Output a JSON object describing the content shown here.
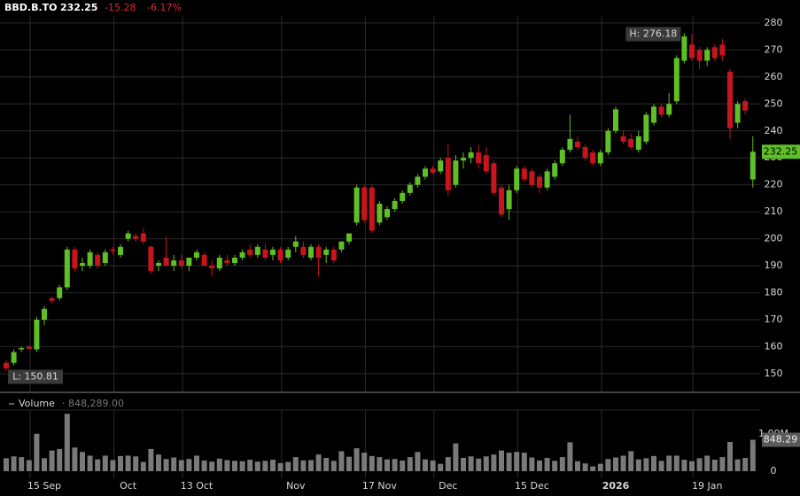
{
  "chart_data": {
    "type": "candlestick",
    "title": "BBD.B.TO",
    "change": -15.28,
    "change_percent": "-6.17%",
    "up_color": "#5fbf26",
    "down_color": "#c8141c",
    "volume_color": "#7a7a7a",
    "grid": true,
    "categories": [
      null,
      null,
      null,
      null,
      null,
      "15 Sep",
      null,
      null,
      null,
      null,
      null,
      null,
      null,
      null,
      null,
      null,
      "Oct",
      null,
      null,
      null,
      null,
      null,
      null,
      null,
      null,
      "13 Oct",
      null,
      null,
      null,
      null,
      null,
      null,
      null,
      null,
      null,
      null,
      null,
      null,
      "Nov",
      null,
      null,
      null,
      null,
      null,
      null,
      null,
      null,
      null,
      null,
      "17 Nov",
      null,
      null,
      null,
      null,
      null,
      null,
      null,
      null,
      "Dec",
      null,
      null,
      null,
      null,
      null,
      null,
      null,
      null,
      null,
      null,
      "15 Dec",
      null,
      null,
      null,
      null,
      null,
      null,
      null,
      null,
      null,
      null,
      "2026",
      null,
      null,
      null,
      null,
      null,
      null,
      null,
      null,
      null,
      null,
      null,
      "19 Jan",
      null,
      null,
      null,
      null,
      null,
      null
    ],
    "open": [
      154,
      154,
      159,
      160,
      159,
      170,
      178,
      178,
      182,
      196,
      190,
      190,
      194,
      191,
      196,
      194,
      200,
      201,
      202,
      197,
      190,
      193,
      190,
      192,
      190,
      193,
      194,
      190,
      189,
      192,
      191,
      193,
      196,
      194,
      196,
      194,
      196,
      193,
      197,
      197,
      193,
      197,
      194,
      196,
      196,
      199,
      206,
      219,
      219,
      206,
      208,
      211,
      214,
      217,
      220,
      223,
      226,
      225,
      230,
      220,
      229,
      230,
      232,
      231,
      228,
      219,
      211,
      218,
      226,
      225,
      223,
      219,
      223,
      228,
      233,
      236,
      234,
      232,
      228,
      232,
      240,
      238,
      237,
      233,
      236,
      243,
      249,
      246,
      251,
      266,
      272,
      270,
      266,
      271,
      272,
      262,
      243,
      251,
      222
    ],
    "high": [
      155,
      159,
      160,
      160.5,
      171,
      175,
      178.5,
      183,
      197,
      197,
      193,
      196,
      195,
      196,
      197,
      198,
      203,
      202,
      204,
      197.5,
      192,
      201,
      194,
      194,
      193,
      196,
      195,
      192,
      194,
      194,
      194,
      196,
      198,
      198,
      198,
      197,
      197,
      197,
      201,
      199,
      198,
      198,
      197,
      197,
      199,
      202,
      220,
      220,
      220,
      214,
      212,
      215,
      218,
      221,
      224,
      227,
      227,
      230,
      235,
      231,
      232,
      234,
      235,
      234,
      229,
      220,
      220,
      227,
      227,
      226,
      224,
      226,
      229,
      234,
      246,
      238,
      235,
      233,
      233,
      241,
      249,
      240,
      239,
      240,
      247,
      250,
      250,
      254,
      268,
      276.18,
      276,
      271,
      271,
      272,
      274,
      263,
      251,
      252,
      238
    ],
    "low": [
      150.81,
      153,
      158,
      159,
      158,
      168,
      176,
      177,
      181,
      188,
      188,
      189,
      189,
      190,
      194,
      193,
      199,
      199,
      198,
      187,
      188,
      190,
      188,
      189,
      188,
      192,
      190,
      186,
      188,
      190,
      190,
      192,
      193,
      193,
      192,
      192,
      191,
      192,
      195,
      193,
      192,
      186,
      191,
      191,
      195,
      198,
      205,
      206,
      202,
      205,
      207,
      210,
      213,
      216,
      219,
      222,
      224,
      224,
      216,
      219,
      226,
      228,
      226,
      224,
      216,
      208,
      207,
      217,
      221,
      219,
      217,
      218,
      222,
      227,
      232,
      233,
      229,
      227,
      227,
      231,
      239,
      235,
      233,
      232,
      235,
      242,
      245,
      245,
      250,
      265,
      266,
      263,
      264,
      266,
      266,
      237,
      241,
      246,
      219
    ],
    "close": [
      152,
      158,
      159.5,
      159.2,
      170,
      174,
      177,
      182,
      196,
      189,
      191,
      195,
      190,
      195,
      195.5,
      197,
      202,
      200,
      199,
      188,
      191,
      190,
      192,
      190,
      193,
      195,
      190,
      189,
      193,
      191,
      193,
      195,
      194,
      197,
      193,
      196,
      192,
      196,
      199,
      194,
      197,
      193,
      196,
      192,
      199,
      202,
      219,
      207,
      203,
      213,
      211,
      214,
      217,
      220,
      223,
      226,
      224.5,
      229,
      218,
      229,
      230,
      232,
      228,
      225,
      217,
      209,
      218,
      226,
      222,
      220,
      219,
      225,
      228,
      233,
      237,
      234,
      230,
      228,
      232,
      240,
      248,
      236,
      234,
      238,
      246,
      249,
      246,
      250,
      267,
      275,
      267,
      266,
      270,
      267,
      268,
      241,
      250,
      247.53,
      232.25
    ],
    "volume": [
      350000,
      400000,
      380000,
      300000,
      1010000,
      350000,
      560000,
      600000,
      1550000,
      640000,
      520000,
      420000,
      320000,
      420000,
      300000,
      410000,
      420000,
      400000,
      250000,
      600000,
      450000,
      330000,
      370000,
      300000,
      330000,
      420000,
      290000,
      260000,
      340000,
      300000,
      280000,
      270000,
      310000,
      260000,
      280000,
      310000,
      220000,
      250000,
      380000,
      290000,
      300000,
      450000,
      360000,
      280000,
      540000,
      390000,
      620000,
      500000,
      410000,
      380000,
      320000,
      330000,
      290000,
      380000,
      520000,
      320000,
      290000,
      200000,
      380000,
      750000,
      360000,
      400000,
      340000,
      400000,
      450000,
      560000,
      500000,
      520000,
      500000,
      370000,
      290000,
      360000,
      280000,
      380000,
      780000,
      270000,
      210000,
      130000,
      200000,
      330000,
      370000,
      420000,
      540000,
      320000,
      350000,
      410000,
      280000,
      420000,
      420000,
      310000,
      270000,
      350000,
      420000,
      310000,
      380000,
      790000,
      320000,
      360000,
      848289
    ],
    "ylim": [
      143.4,
      282.6
    ],
    "yticks": [
      150,
      160,
      170,
      180,
      190,
      200,
      210,
      220,
      230,
      240,
      250,
      260,
      270,
      280
    ],
    "volume_title": "Volume",
    "volume_readout": "848,289.00",
    "volume_ylim": [
      0,
      1650000
    ],
    "volume_yticks": [
      0,
      {
        "value": 1000000,
        "label": "1.00M"
      }
    ],
    "volume_last_label": "848.29",
    "annotations": [
      {
        "text": "H: 276.18"
      },
      {
        "text": "L: 150.81"
      }
    ]
  }
}
